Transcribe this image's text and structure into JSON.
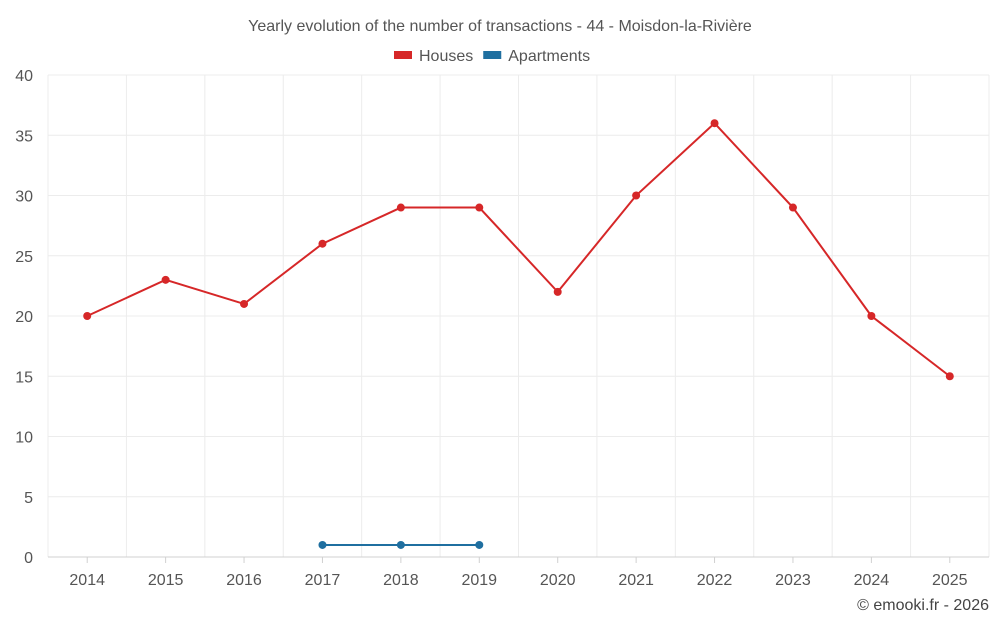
{
  "chart_data": {
    "type": "line",
    "title": "Yearly evolution of the number of transactions - 44 - Moisdon-la-Rivière",
    "categories": [
      "2014",
      "2015",
      "2016",
      "2017",
      "2018",
      "2019",
      "2020",
      "2021",
      "2022",
      "2023",
      "2024",
      "2025"
    ],
    "ylim": [
      0,
      40
    ],
    "yticks": [
      "0",
      "5",
      "10",
      "15",
      "20",
      "25",
      "30",
      "35",
      "40"
    ],
    "grid": true,
    "legend_position": "top-center",
    "series": [
      {
        "name": "Houses",
        "color": "#d62728",
        "values": [
          20,
          23,
          21,
          26,
          29,
          29,
          22,
          30,
          36,
          29,
          20,
          15
        ]
      },
      {
        "name": "Apartments",
        "color": "#1f6fa0",
        "values": [
          null,
          null,
          null,
          1,
          1,
          1,
          null,
          null,
          null,
          null,
          null,
          null
        ]
      }
    ],
    "credit": "© emooki.fr - 2026"
  }
}
